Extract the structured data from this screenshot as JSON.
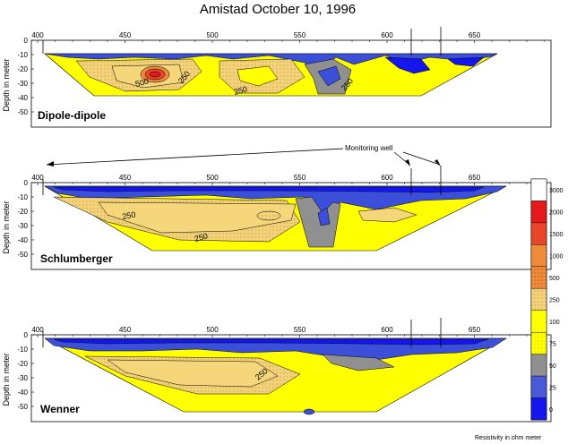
{
  "title": "Amistad  October 10, 1996",
  "xticks": [
    "400",
    "450",
    "500",
    "550",
    "600",
    "650"
  ],
  "yticks": [
    "0",
    "-10",
    "-20",
    "-30",
    "-40",
    "-50"
  ],
  "yaxis_label": "Depth in meter",
  "panels": [
    {
      "name": "Dipole-dipole",
      "contours": [
        "500",
        "250",
        "250",
        "250"
      ]
    },
    {
      "name": "Schlumberger",
      "contours": [
        "250",
        "250"
      ]
    },
    {
      "name": "Wenner",
      "contours": [
        "250"
      ]
    }
  ],
  "annotation": "Monitoring well",
  "legend": {
    "values": [
      "3000",
      "2000",
      "1500",
      "1000",
      "500",
      "250",
      "100",
      "75",
      "50",
      "25",
      "0"
    ],
    "colors": [
      "#ffffff",
      "#e41a1c",
      "#e8452a",
      "#ef8a3a",
      "#f2b34c",
      "#f5d67a",
      "#ffff00",
      "#c9c94e",
      "#909090",
      "#4a5ad6",
      "#1515ee"
    ],
    "unit_label": "Resistivity in ohm meter"
  }
}
